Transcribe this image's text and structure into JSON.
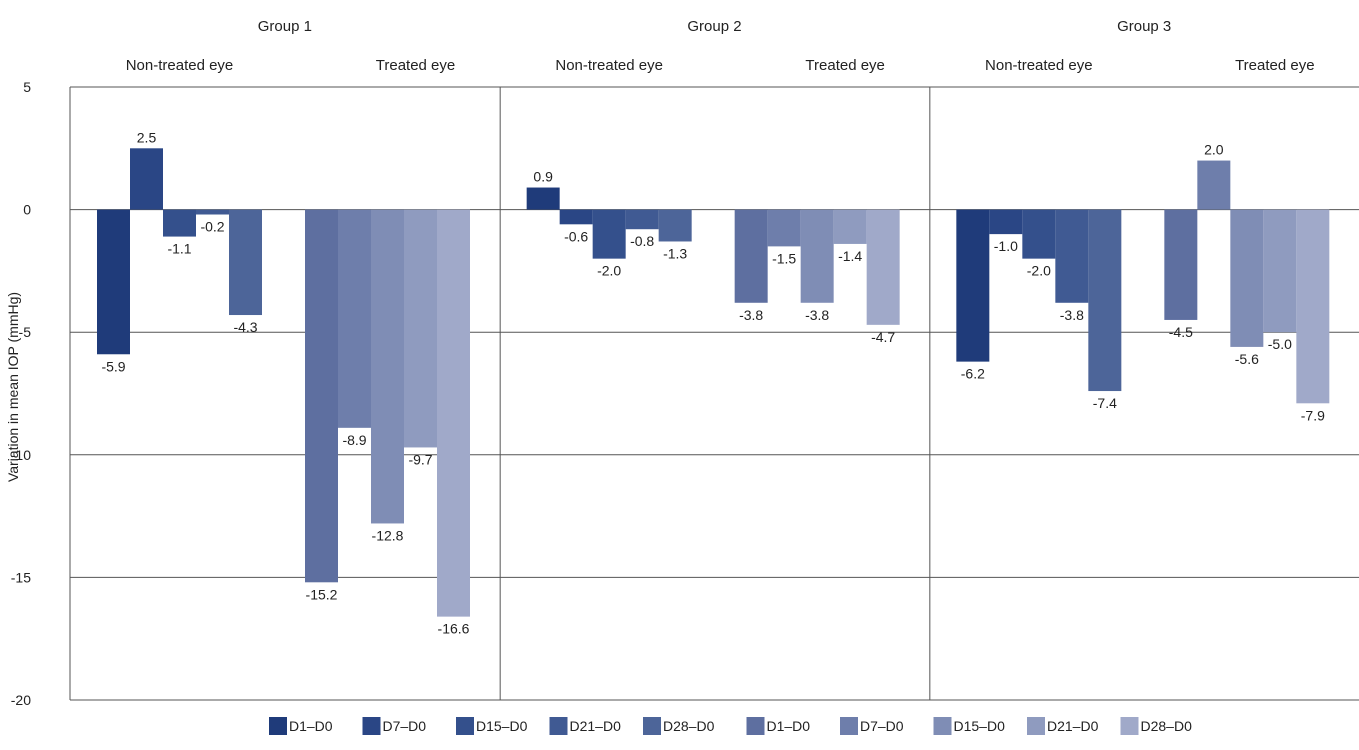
{
  "chart_data": {
    "type": "bar",
    "ylabel": "Variation in mean IOP (mmHg)",
    "ylim": [
      -20,
      5
    ],
    "yticks": [
      5,
      0,
      -5,
      -10,
      -15,
      -20
    ],
    "grid": true,
    "groups": [
      {
        "name": "Group 1",
        "panels": [
          {
            "label": "Non-treated eye",
            "values": [
              -5.9,
              2.5,
              -1.1,
              -0.2,
              -4.3
            ]
          },
          {
            "label": "Treated eye",
            "values": [
              -15.2,
              -8.9,
              -12.8,
              -9.7,
              -16.6
            ]
          }
        ]
      },
      {
        "name": "Group 2",
        "panels": [
          {
            "label": "Non-treated eye",
            "values": [
              0.9,
              -0.6,
              -2.0,
              -0.8,
              -1.3
            ]
          },
          {
            "label": "Treated eye",
            "values": [
              -3.8,
              -1.5,
              -3.8,
              -1.4,
              -4.7
            ]
          }
        ]
      },
      {
        "name": "Group 3",
        "panels": [
          {
            "label": "Non-treated eye",
            "values": [
              -6.2,
              -1.0,
              -2.0,
              -3.8,
              -7.4
            ]
          },
          {
            "label": "Treated eye",
            "values": [
              -4.5,
              2.0,
              -5.6,
              -5.0,
              -7.9
            ]
          }
        ]
      }
    ],
    "series": [
      {
        "name": "D1–D0",
        "panel": "Non-treated eye",
        "color": "#1f3b7a"
      },
      {
        "name": "D7–D0",
        "panel": "Non-treated eye",
        "color": "#2a4685"
      },
      {
        "name": "D15–D0",
        "panel": "Non-treated eye",
        "color": "#34508c"
      },
      {
        "name": "D21–D0",
        "panel": "Non-treated eye",
        "color": "#405a93"
      },
      {
        "name": "D28–D0",
        "panel": "Non-treated eye",
        "color": "#4d6599"
      },
      {
        "name": "D1–D0",
        "panel": "Treated eye",
        "color": "#5e6fa0"
      },
      {
        "name": "D7–D0",
        "panel": "Treated eye",
        "color": "#6e7eab"
      },
      {
        "name": "D15–D0",
        "panel": "Treated eye",
        "color": "#7f8db5"
      },
      {
        "name": "D21–D0",
        "panel": "Treated eye",
        "color": "#8f9bbf"
      },
      {
        "name": "D28–D0",
        "panel": "Treated eye",
        "color": "#a0a9c9"
      }
    ],
    "legend_position": "bottom"
  }
}
